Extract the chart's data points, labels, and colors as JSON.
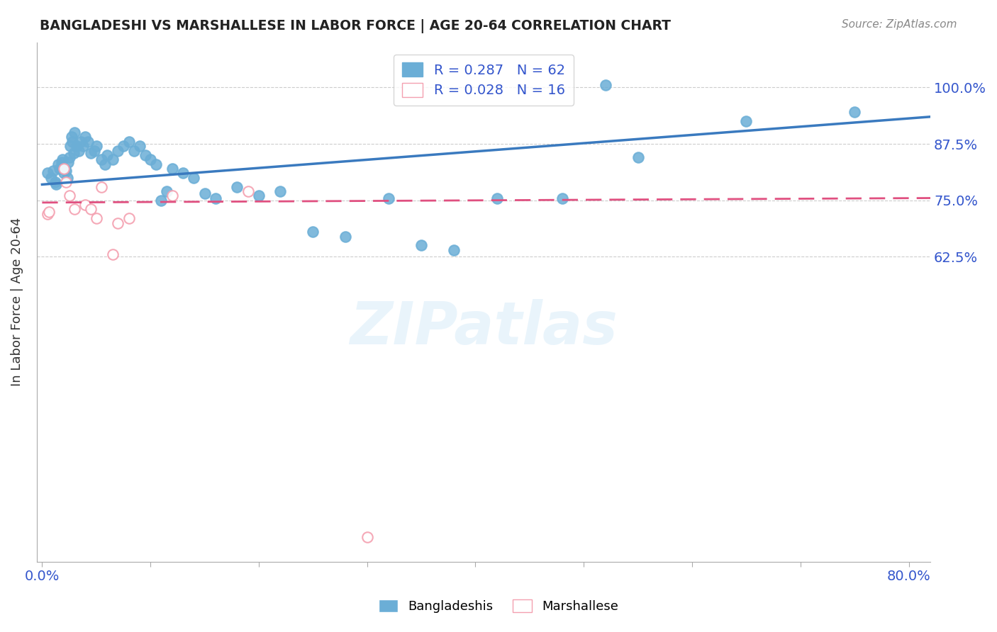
{
  "title": "BANGLADESHI VS MARSHALLESE IN LABOR FORCE | AGE 20-64 CORRELATION CHART",
  "source": "Source: ZipAtlas.com",
  "ylabel": "In Labor Force | Age 20-64",
  "xlim": [
    -0.005,
    0.82
  ],
  "ylim": [
    -0.05,
    1.1
  ],
  "blue_color": "#6baed6",
  "pink_color": "#f4a0b0",
  "trendline_blue": "#3a7abf",
  "trendline_pink": "#e05080",
  "watermark": "ZIPatlas",
  "blue_scatter_x": [
    0.005,
    0.008,
    0.01,
    0.012,
    0.013,
    0.015,
    0.016,
    0.018,
    0.019,
    0.02,
    0.021,
    0.022,
    0.023,
    0.024,
    0.025,
    0.026,
    0.027,
    0.028,
    0.029,
    0.03,
    0.032,
    0.034,
    0.036,
    0.038,
    0.04,
    0.042,
    0.045,
    0.048,
    0.05,
    0.055,
    0.058,
    0.06,
    0.065,
    0.07,
    0.075,
    0.08,
    0.085,
    0.09,
    0.095,
    0.1,
    0.105,
    0.11,
    0.115,
    0.12,
    0.13,
    0.14,
    0.15,
    0.16,
    0.18,
    0.2,
    0.22,
    0.25,
    0.28,
    0.32,
    0.35,
    0.38,
    0.42,
    0.48,
    0.55,
    0.65,
    0.75,
    0.52
  ],
  "blue_scatter_y": [
    0.81,
    0.8,
    0.815,
    0.79,
    0.785,
    0.83,
    0.82,
    0.835,
    0.84,
    0.81,
    0.82,
    0.815,
    0.8,
    0.835,
    0.845,
    0.87,
    0.89,
    0.88,
    0.855,
    0.9,
    0.87,
    0.86,
    0.88,
    0.87,
    0.89,
    0.88,
    0.855,
    0.86,
    0.87,
    0.84,
    0.83,
    0.85,
    0.84,
    0.86,
    0.87,
    0.88,
    0.86,
    0.87,
    0.85,
    0.84,
    0.83,
    0.75,
    0.77,
    0.82,
    0.81,
    0.8,
    0.765,
    0.755,
    0.78,
    0.76,
    0.77,
    0.68,
    0.67,
    0.755,
    0.65,
    0.64,
    0.755,
    0.755,
    0.845,
    0.925,
    0.945,
    1.005
  ],
  "pink_scatter_x": [
    0.005,
    0.006,
    0.02,
    0.022,
    0.025,
    0.03,
    0.04,
    0.045,
    0.05,
    0.055,
    0.065,
    0.07,
    0.08,
    0.12,
    0.19,
    0.3
  ],
  "pink_scatter_y": [
    0.72,
    0.725,
    0.82,
    0.79,
    0.76,
    0.73,
    0.74,
    0.73,
    0.71,
    0.78,
    0.63,
    0.7,
    0.71,
    0.76,
    0.77,
    0.005
  ],
  "blue_trend_x": [
    0.0,
    0.82
  ],
  "blue_trend_y": [
    0.785,
    0.935
  ],
  "pink_trend_x": [
    0.0,
    0.82
  ],
  "pink_trend_y": [
    0.745,
    0.755
  ],
  "x_ticks": [
    0.0,
    0.1,
    0.2,
    0.3,
    0.4,
    0.5,
    0.6,
    0.7,
    0.8
  ],
  "y_ticks": [
    0.0,
    0.625,
    0.75,
    0.875,
    1.0
  ]
}
